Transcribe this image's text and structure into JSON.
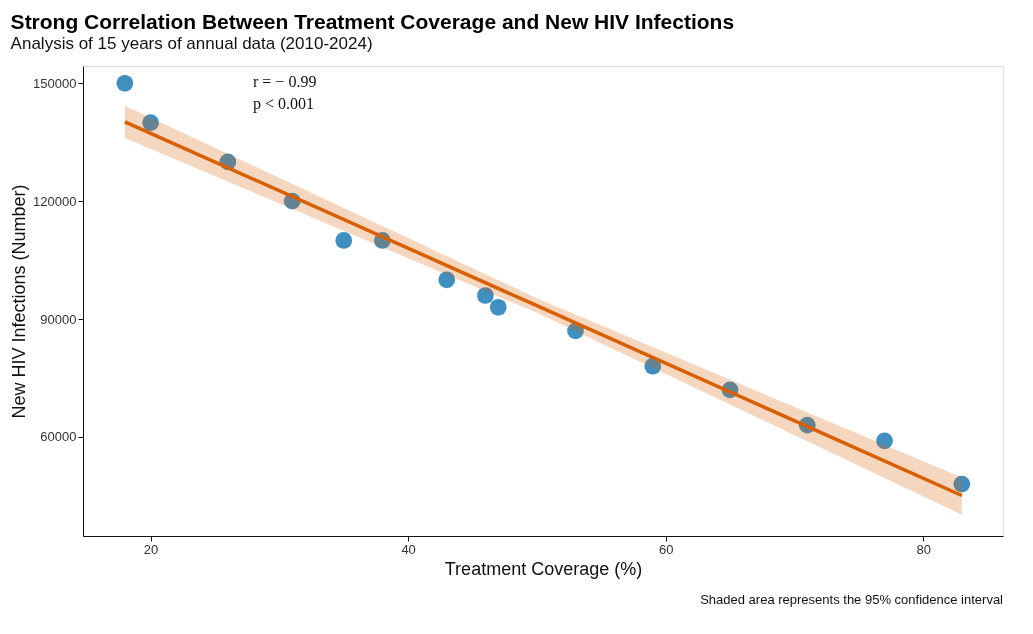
{
  "chart_data": {
    "type": "scatter",
    "title": "Strong Correlation Between Treatment Coverage and New HIV Infections",
    "subtitle": "Analysis of 15 years of annual data (2010-2024)",
    "xlabel": "Treatment Coverage (%)",
    "ylabel": "New HIV Infections (Number)",
    "annotations": [
      "r = − 0.99",
      "p < 0.001",
      "Shaded area represents the 95% confidence interval"
    ],
    "xlim": [
      14.75,
      86.2
    ],
    "ylim": [
      34800,
      154400
    ],
    "xticks": [
      20,
      40,
      60,
      80
    ],
    "yticks": [
      60000,
      90000,
      120000,
      150000
    ],
    "grid": false,
    "series": [
      {
        "color": "#2b83ba",
        "marker": "circle",
        "x": [
          18,
          20,
          26,
          31,
          35,
          38,
          43,
          46,
          47,
          53,
          59,
          65,
          71,
          77,
          83
        ],
        "values": [
          150000,
          140000,
          130000,
          120000,
          110000,
          110000,
          100000,
          96000,
          93000,
          87000,
          78000,
          72000,
          63000,
          59000,
          48000
        ]
      },
      {
        "type": "line",
        "color": "#d95f02",
        "line_style": "solid",
        "x": [
          18,
          50,
          83
        ],
        "values": [
          140200,
          93400,
          45100
        ],
        "lower": [
          136100,
          91600,
          40200
        ],
        "upper": [
          144300,
          95300,
          49700
        ]
      }
    ]
  }
}
